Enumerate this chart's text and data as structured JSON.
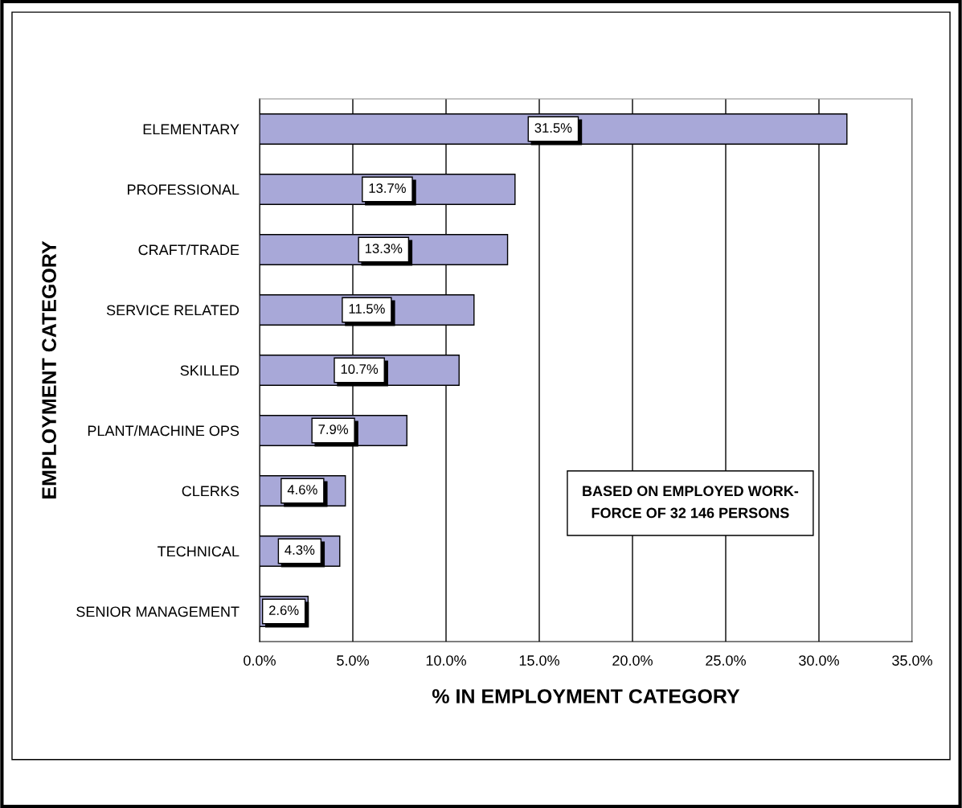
{
  "chart_data": {
    "type": "bar",
    "orientation": "horizontal",
    "categories": [
      "ELEMENTARY",
      "PROFESSIONAL",
      "CRAFT/TRADE",
      "SERVICE RELATED",
      "SKILLED",
      "PLANT/MACHINE OPS",
      "CLERKS",
      "TECHNICAL",
      "SENIOR MANAGEMENT"
    ],
    "values": [
      31.5,
      13.7,
      13.3,
      11.5,
      10.7,
      7.9,
      4.6,
      4.3,
      2.6
    ],
    "value_labels": [
      "31.5%",
      "13.7%",
      "13.3%",
      "11.5%",
      "10.7%",
      "7.9%",
      "4.6%",
      "4.3%",
      "2.6%"
    ],
    "color": "#a8a8d8",
    "xlabel": "% IN EMPLOYMENT CATEGORY",
    "ylabel": "EMPLOYMENT CATEGORY",
    "xlim": [
      0,
      35
    ],
    "xticks": [
      {
        "value": 0,
        "label": "0.0%"
      },
      {
        "value": 5,
        "label": "5.0%"
      },
      {
        "value": 10,
        "label": "10.0%"
      },
      {
        "value": 15,
        "label": "15.0%"
      },
      {
        "value": 20,
        "label": "20.0%"
      },
      {
        "value": 25,
        "label": "25.0%"
      },
      {
        "value": 30,
        "label": "30.0%"
      },
      {
        "value": 35,
        "label": "35.0%"
      }
    ],
    "grid": "x",
    "annotations": [
      "BASED ON EMPLOYED WORK-\nFORCE OF 32 146 PERSONS"
    ]
  }
}
